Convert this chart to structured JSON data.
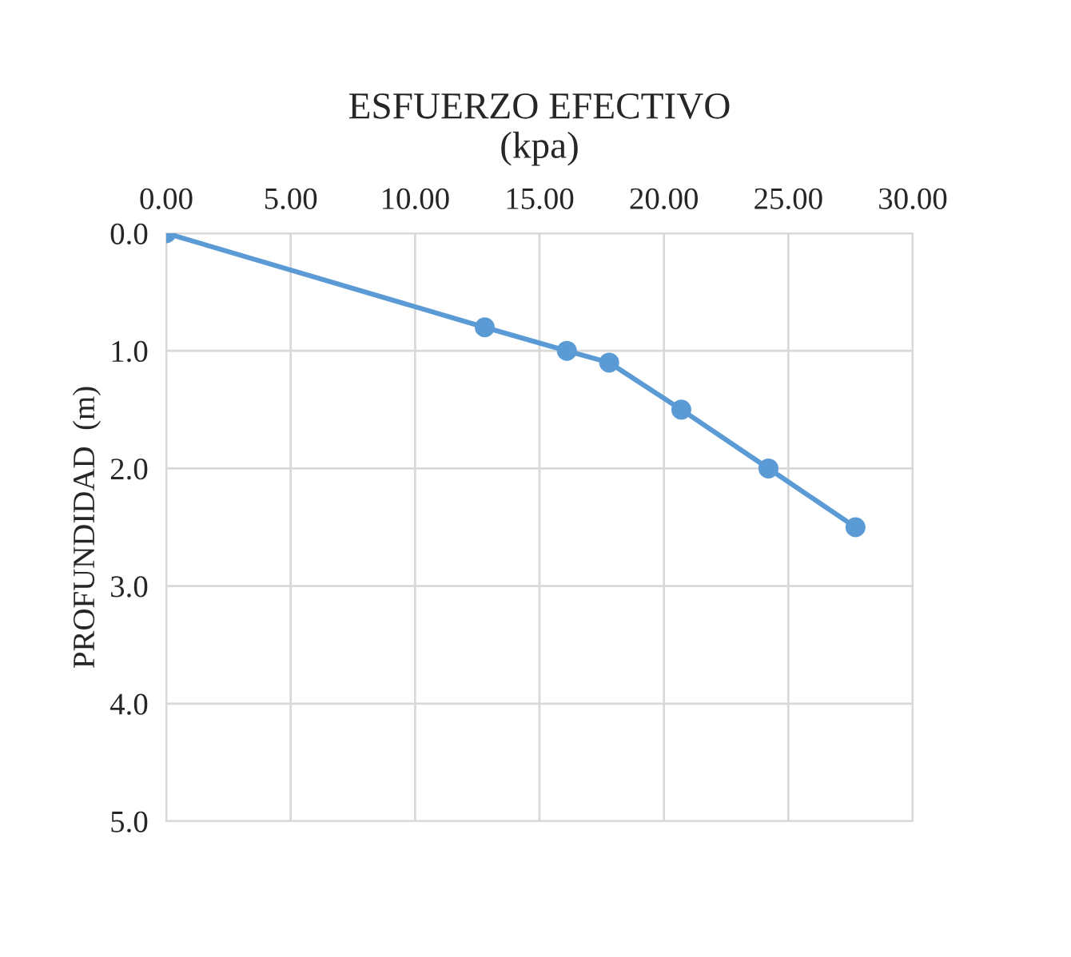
{
  "chart_data": {
    "type": "line",
    "title": "ESFUERZO EFECTIVO\n(kpa)",
    "ylabel": "PROFUNDIDAD  (m)",
    "x": [
      0,
      12.8,
      16.1,
      17.8,
      20.7,
      24.2,
      27.7
    ],
    "series": [
      {
        "color": "#5b9bd5",
        "values": [
          0,
          0.8,
          1.0,
          1.1,
          1.5,
          2.0,
          2.5
        ]
      }
    ],
    "xlim": [
      0,
      30
    ],
    "ylim": [
      5,
      0
    ],
    "xticks": [
      {
        "value": 0,
        "label": "0.00"
      },
      {
        "value": 5,
        "label": "5.00"
      },
      {
        "value": 10,
        "label": "10.00"
      },
      {
        "value": 15,
        "label": "15.00"
      },
      {
        "value": 20,
        "label": "20.00"
      },
      {
        "value": 25,
        "label": "25.00"
      },
      {
        "value": 30,
        "label": "30.00"
      }
    ],
    "yticks": [
      {
        "value": 0,
        "label": "0.0"
      },
      {
        "value": 1,
        "label": "1.0"
      },
      {
        "value": 2,
        "label": "2.0"
      },
      {
        "value": 3,
        "label": "3.0"
      },
      {
        "value": 4,
        "label": "4.0"
      },
      {
        "value": 5,
        "label": "5.0"
      }
    ],
    "grid": true,
    "marker": "circle",
    "line_style": "solid"
  }
}
